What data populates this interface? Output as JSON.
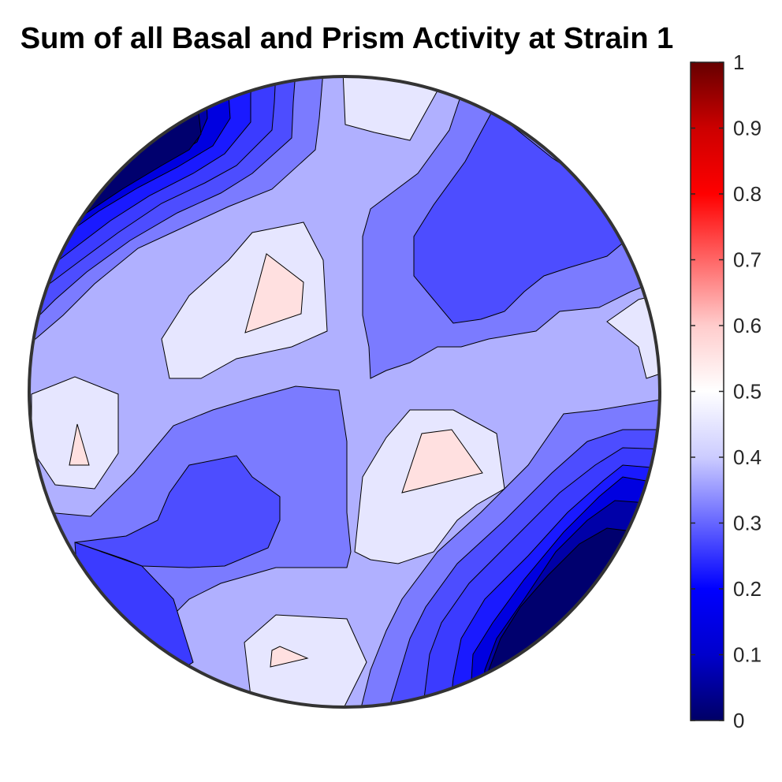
{
  "chart_data": {
    "type": "heatmap",
    "title": "Sum of all Basal and Prism Activity at Strain 1",
    "colorbar": {
      "range": [
        0,
        1
      ],
      "ticks": [
        "0",
        "0.1",
        "0.2",
        "0.3",
        "0.4",
        "0.5",
        "0.6",
        "0.7",
        "0.8",
        "0.9",
        "1"
      ],
      "colormap": [
        "#000066",
        "#0000cc",
        "#0000ff",
        "#6666ff",
        "#ccccff",
        "#ffffff",
        "#ffcccc",
        "#ff6666",
        "#ff0000",
        "#cc0000",
        "#660000"
      ],
      "placement": "right"
    },
    "contour_levels": [
      0.05,
      0.1,
      0.15,
      0.2,
      0.25,
      0.3,
      0.35,
      0.4,
      0.45,
      0.5,
      0.55
    ],
    "fill_colors": {
      "dark_navy": "#00006e",
      "navy": "#0000a8",
      "deep_blue": "#0000e0",
      "blue": "#1a1aff",
      "medium_blue": "#3b3bff",
      "blue_violet": "#4d4dff",
      "periwinkle": "#7b7bff",
      "light_periwinkle": "#b0b0ff",
      "very_light": "#e6e6ff",
      "pale_pink": "#ffe0e0"
    },
    "extrema": [
      {
        "kind": "min",
        "value": 0.0,
        "location": "upper-left edge"
      },
      {
        "kind": "min",
        "value": 0.0,
        "location": "lower-right edge"
      },
      {
        "kind": "max",
        "value": 0.55,
        "location": "upper-center-left"
      },
      {
        "kind": "max",
        "value": 0.55,
        "location": "center-right"
      },
      {
        "kind": "max",
        "value": 0.55,
        "location": "left edge"
      },
      {
        "kind": "max",
        "value": 0.55,
        "location": "bottom-center"
      }
    ]
  }
}
